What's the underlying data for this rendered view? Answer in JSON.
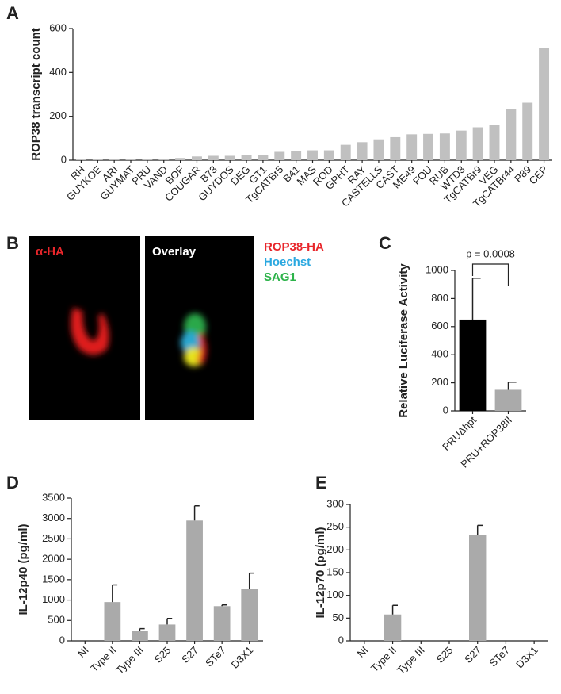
{
  "chart_data": [
    {
      "type": "bar",
      "panel_label": "A",
      "y_label": "ROP38 transcript count",
      "categories": [
        "RH",
        "GUYKOE",
        "ARI",
        "GUYMAT",
        "PRU",
        "VAND",
        "BOF",
        "COUGAR",
        "B73",
        "GUYDOS",
        "DEG",
        "GT1",
        "TgCATBr5",
        "B41",
        "MAS",
        "ROD",
        "GPHT",
        "RAY",
        "CASTELLS",
        "CAST",
        "ME49",
        "FOU",
        "RUB",
        "WTD3",
        "TgCATBr9",
        "VEG",
        "TgCATBr44",
        "P89",
        "CEP"
      ],
      "values": [
        2,
        3,
        4,
        5,
        6,
        7,
        10,
        17,
        20,
        20,
        22,
        25,
        38,
        42,
        45,
        45,
        70,
        82,
        95,
        105,
        118,
        120,
        122,
        135,
        150,
        160,
        232,
        262,
        510
      ],
      "color": "#c0c0c0",
      "ylim": [
        0,
        600
      ],
      "yticks": [
        0,
        200,
        400,
        600
      ]
    },
    {
      "type": "bar",
      "panel_label": "C",
      "y_label": "Relative Luciferase Activity",
      "categories": [
        "PRUΔhpt",
        "PRU+ROP38II"
      ],
      "values": [
        650,
        150
      ],
      "errors": [
        295,
        55
      ],
      "colors": [
        "#000000",
        "#aaaaaa"
      ],
      "ylim": [
        0,
        1000
      ],
      "yticks": [
        0,
        200,
        400,
        600,
        800,
        1000
      ],
      "annotation": "p = 0.0008"
    },
    {
      "type": "bar",
      "panel_label": "D",
      "y_label": "IL-12p40 (pg/ml)",
      "categories": [
        "NI",
        "Type II",
        "Type III",
        "S25",
        "S27",
        "STe7",
        "D3X1"
      ],
      "values": [
        0,
        950,
        250,
        400,
        2950,
        850,
        1270
      ],
      "errors": [
        null,
        420,
        50,
        150,
        360,
        30,
        390
      ],
      "color": "#aaaaaa",
      "ylim": [
        0,
        3500
      ],
      "yticks": [
        0,
        500,
        1000,
        1500,
        2000,
        2500,
        3000,
        3500
      ]
    },
    {
      "type": "bar",
      "panel_label": "E",
      "y_label": "IL-12p70 (pg/ml)",
      "categories": [
        "NI",
        "Type II",
        "Type III",
        "S25",
        "S27",
        "STe7",
        "D3X1"
      ],
      "values": [
        0,
        58,
        0,
        0,
        232,
        0,
        0
      ],
      "errors": [
        null,
        20,
        null,
        null,
        22,
        null,
        null
      ],
      "color": "#aaaaaa",
      "ylim": [
        0,
        300
      ],
      "yticks": [
        0,
        50,
        100,
        150,
        200,
        250,
        300
      ]
    }
  ],
  "image_panel": {
    "panel_label": "B",
    "images": [
      "α-HA",
      "Overlay"
    ],
    "legend": [
      {
        "text": "ROP38-HA",
        "color": "#e8262b"
      },
      {
        "text": "Hoechst",
        "color": "#2aa8e0"
      },
      {
        "text": "SAG1",
        "color": "#2db34a"
      }
    ]
  }
}
